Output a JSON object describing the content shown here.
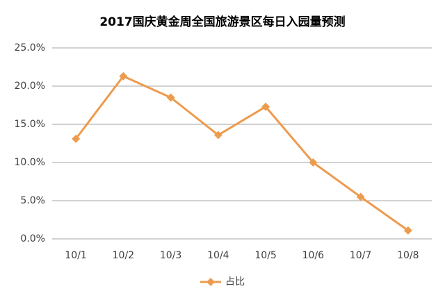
{
  "chart_data": {
    "type": "line",
    "title": "2017国庆黄金周全国旅游景区每日入园量预测",
    "categories": [
      "10/1",
      "10/2",
      "10/3",
      "10/4",
      "10/5",
      "10/6",
      "10/7",
      "10/8"
    ],
    "series": [
      {
        "name": "占比",
        "color": "#ed9b4e",
        "values": [
          13.1,
          21.3,
          18.5,
          13.6,
          17.3,
          10.0,
          5.5,
          1.1
        ]
      }
    ],
    "ylim": [
      0,
      25
    ],
    "yticks": [
      {
        "value": 0,
        "label": "0.0%"
      },
      {
        "value": 5,
        "label": "5.0%"
      },
      {
        "value": 10,
        "label": "10.0%"
      },
      {
        "value": 15,
        "label": "15.0%"
      },
      {
        "value": 20,
        "label": "20.0%"
      },
      {
        "value": 25,
        "label": "25.0%"
      }
    ],
    "grid": true,
    "legend": "bottom"
  }
}
